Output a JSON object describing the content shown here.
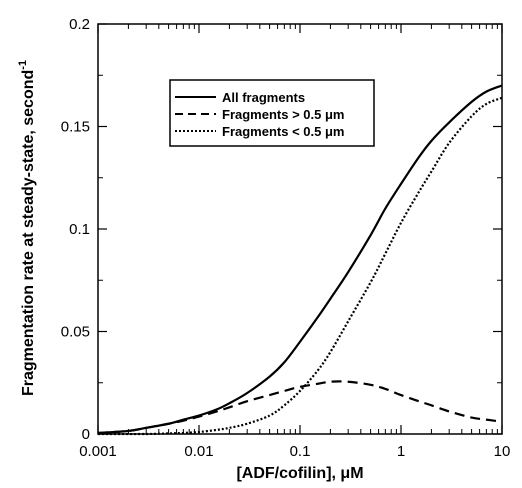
{
  "chart_data": {
    "type": "line",
    "xlabel": "[ADF/cofilin], μM",
    "ylabel": "Fragmentation rate at steady-state, second",
    "ylabel_superscript": "-1",
    "x_scale": "log",
    "xlim": [
      0.001,
      10
    ],
    "ylim": [
      0,
      0.2
    ],
    "x_ticks": [
      {
        "value": 0.001,
        "label": "0.001"
      },
      {
        "value": 0.01,
        "label": "0.01"
      },
      {
        "value": 0.1,
        "label": "0.1"
      },
      {
        "value": 1,
        "label": "1"
      },
      {
        "value": 10,
        "label": "10"
      }
    ],
    "y_ticks": [
      {
        "value": 0,
        "label": "0"
      },
      {
        "value": 0.05,
        "label": "0.05"
      },
      {
        "value": 0.1,
        "label": "0.1"
      },
      {
        "value": 0.15,
        "label": "0.15"
      },
      {
        "value": 0.2,
        "label": "0.2"
      }
    ],
    "grid": false,
    "legend_position": "upper-center",
    "series": [
      {
        "name": "All fragments",
        "style": "solid",
        "x": [
          0.001,
          0.002,
          0.003,
          0.005,
          0.007,
          0.01,
          0.015,
          0.02,
          0.03,
          0.05,
          0.07,
          0.1,
          0.15,
          0.2,
          0.3,
          0.5,
          0.7,
          1,
          1.5,
          2,
          3,
          5,
          7,
          10
        ],
        "y": [
          0.0005,
          0.0015,
          0.003,
          0.005,
          0.007,
          0.009,
          0.012,
          0.015,
          0.02,
          0.028,
          0.035,
          0.045,
          0.057,
          0.066,
          0.079,
          0.097,
          0.11,
          0.122,
          0.135,
          0.143,
          0.152,
          0.162,
          0.167,
          0.17
        ]
      },
      {
        "name": "Fragments > 0.5 μm",
        "style": "dashed",
        "x": [
          0.001,
          0.002,
          0.003,
          0.005,
          0.007,
          0.01,
          0.015,
          0.02,
          0.03,
          0.05,
          0.07,
          0.1,
          0.15,
          0.2,
          0.3,
          0.5,
          0.7,
          1,
          1.5,
          2,
          3,
          5,
          7,
          10
        ],
        "y": [
          0.0005,
          0.0015,
          0.003,
          0.005,
          0.0065,
          0.0085,
          0.011,
          0.013,
          0.016,
          0.019,
          0.021,
          0.023,
          0.0245,
          0.0255,
          0.0255,
          0.024,
          0.022,
          0.019,
          0.016,
          0.014,
          0.011,
          0.008,
          0.007,
          0.006
        ]
      },
      {
        "name": "Fragments < 0.5 μm",
        "style": "dotted",
        "x": [
          0.001,
          0.003,
          0.005,
          0.007,
          0.01,
          0.015,
          0.02,
          0.03,
          0.05,
          0.07,
          0.1,
          0.15,
          0.2,
          0.3,
          0.5,
          0.7,
          1,
          1.5,
          2,
          3,
          5,
          7,
          10
        ],
        "y": [
          0,
          0,
          0.0003,
          0.0005,
          0.001,
          0.002,
          0.003,
          0.005,
          0.009,
          0.014,
          0.021,
          0.031,
          0.04,
          0.055,
          0.074,
          0.088,
          0.103,
          0.118,
          0.128,
          0.142,
          0.155,
          0.161,
          0.164
        ]
      }
    ]
  }
}
